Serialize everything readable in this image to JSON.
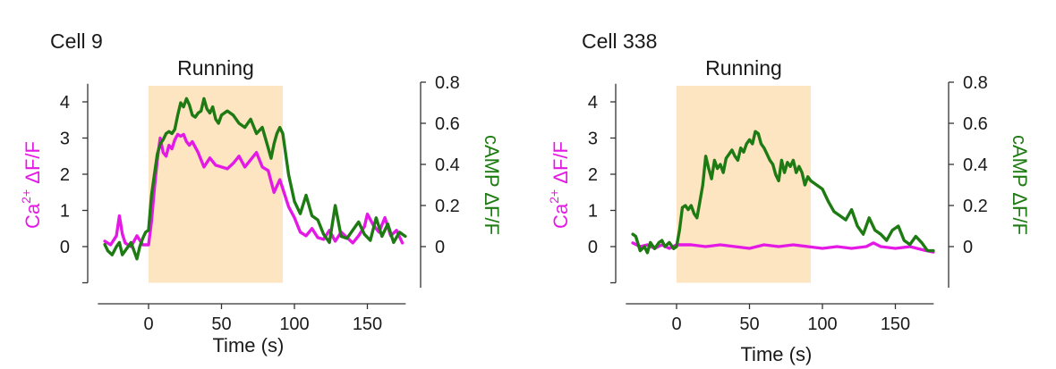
{
  "colors": {
    "calcium": "#e519e5",
    "camp": "#1e7a12",
    "band": "#fde5c2",
    "axis": "#333333"
  },
  "chart_data": [
    {
      "type": "line",
      "title": "Cell 9",
      "band": {
        "label": "Running",
        "x": [
          0,
          92
        ]
      },
      "xlabel": "Time (s)",
      "xlim": [
        -36,
        180
      ],
      "xticks": [
        0,
        50,
        100,
        150
      ],
      "left_axis": {
        "label_main": "Ca",
        "label_sup": "2+",
        "label_rest": " ΔF/F",
        "ylim": [
          -1,
          4.5
        ],
        "yticks": [
          0,
          1,
          2,
          3,
          4
        ],
        "minor_ticks": [
          -1
        ]
      },
      "right_axis": {
        "label": "cAMP ΔF/F",
        "ylim": [
          -0.2,
          0.8
        ],
        "yticks": [
          0,
          0.2,
          0.4,
          0.6,
          0.8
        ],
        "tick_labels": [
          "0",
          "0.2",
          "0.4",
          "0.6",
          "0.8"
        ]
      },
      "series": [
        {
          "axis": "left",
          "color_key": "calcium",
          "x": [
            -30,
            -26,
            -22,
            -20,
            -18,
            -16,
            -12,
            -8,
            -4,
            0,
            2,
            4,
            6,
            8,
            10,
            12,
            14,
            16,
            18,
            20,
            22,
            24,
            26,
            28,
            30,
            34,
            38,
            42,
            46,
            50,
            54,
            58,
            62,
            66,
            70,
            74,
            78,
            82,
            86,
            90,
            92,
            96,
            100,
            104,
            108,
            112,
            116,
            120,
            124,
            128,
            132,
            136,
            140,
            144,
            148,
            150,
            154,
            158,
            162,
            166,
            170,
            174
          ],
          "values": [
            0.15,
            0.05,
            0.3,
            0.85,
            0.35,
            0.1,
            0.0,
            0.3,
            0.05,
            0.05,
            0.7,
            1.6,
            2.4,
            3.0,
            2.6,
            2.5,
            2.8,
            2.7,
            2.95,
            3.1,
            3.05,
            3.1,
            2.9,
            2.8,
            2.9,
            2.6,
            2.2,
            2.45,
            2.25,
            2.2,
            2.15,
            2.3,
            2.5,
            2.2,
            2.4,
            2.6,
            2.2,
            2.1,
            1.5,
            1.85,
            1.6,
            1.1,
            0.8,
            0.4,
            0.3,
            0.5,
            0.25,
            0.2,
            0.45,
            0.15,
            0.4,
            0.25,
            0.1,
            0.3,
            0.55,
            0.9,
            0.6,
            0.4,
            0.8,
            0.3,
            0.45,
            0.1
          ]
        },
        {
          "axis": "right",
          "color_key": "camp",
          "x": [
            -30,
            -28,
            -25,
            -22,
            -20,
            -18,
            -16,
            -14,
            -12,
            -10,
            -8,
            -6,
            -4,
            -2,
            0,
            2,
            4,
            6,
            8,
            10,
            12,
            14,
            16,
            18,
            20,
            22,
            24,
            26,
            28,
            30,
            32,
            34,
            36,
            38,
            40,
            42,
            44,
            46,
            48,
            50,
            54,
            58,
            62,
            66,
            70,
            74,
            78,
            82,
            84,
            86,
            88,
            90,
            92,
            96,
            100,
            104,
            108,
            112,
            116,
            120,
            124,
            128,
            132,
            136,
            140,
            144,
            148,
            152,
            156,
            160,
            164,
            168,
            172,
            176
          ],
          "values": [
            0.01,
            -0.02,
            -0.04,
            0.0,
            0.02,
            -0.04,
            -0.02,
            0.0,
            0.02,
            -0.02,
            -0.06,
            0.0,
            0.04,
            0.07,
            0.08,
            0.25,
            0.35,
            0.45,
            0.5,
            0.52,
            0.55,
            0.56,
            0.55,
            0.57,
            0.64,
            0.7,
            0.68,
            0.72,
            0.69,
            0.64,
            0.63,
            0.65,
            0.66,
            0.72,
            0.67,
            0.65,
            0.68,
            0.62,
            0.6,
            0.64,
            0.66,
            0.64,
            0.6,
            0.58,
            0.62,
            0.55,
            0.58,
            0.48,
            0.43,
            0.5,
            0.55,
            0.58,
            0.55,
            0.35,
            0.22,
            0.16,
            0.25,
            0.15,
            0.13,
            0.06,
            0.02,
            0.2,
            0.05,
            0.04,
            0.08,
            0.12,
            0.06,
            0.03,
            0.14,
            0.05,
            0.11,
            0.02,
            0.07,
            0.05
          ]
        }
      ]
    },
    {
      "type": "line",
      "title": "Cell 338",
      "band": {
        "label": "Running",
        "x": [
          0,
          92
        ]
      },
      "xlabel": "Time (s)",
      "xlim": [
        -36,
        180
      ],
      "xticks": [
        0,
        50,
        100,
        150
      ],
      "left_axis": {
        "label_main": "Ca",
        "label_sup": "2+",
        "label_rest": " ΔF/F",
        "ylim": [
          -1,
          4.5
        ],
        "yticks": [
          0,
          1,
          2,
          3,
          4
        ],
        "minor_ticks": [
          -1
        ]
      },
      "right_axis": {
        "label": "cAMP ΔF/F",
        "ylim": [
          -0.2,
          0.8
        ],
        "yticks": [
          0,
          0.2,
          0.4,
          0.6,
          0.8
        ],
        "tick_labels": [
          "0",
          "0.2",
          "0.4",
          "0.6",
          "0.8"
        ]
      },
      "series": [
        {
          "axis": "left",
          "color_key": "calcium",
          "x": [
            -30,
            -25,
            -20,
            -15,
            -10,
            -5,
            0,
            10,
            20,
            30,
            40,
            50,
            60,
            70,
            80,
            90,
            100,
            110,
            120,
            130,
            135,
            140,
            150,
            160,
            170,
            176
          ],
          "values": [
            0.1,
            0.0,
            0.05,
            -0.05,
            0.05,
            -0.05,
            0.05,
            0.05,
            0.0,
            0.05,
            0.0,
            -0.05,
            0.05,
            0.0,
            0.05,
            0.0,
            -0.05,
            0.0,
            -0.05,
            0.0,
            0.1,
            0.0,
            -0.05,
            0.0,
            -0.1,
            -0.15
          ]
        },
        {
          "axis": "right",
          "color_key": "camp",
          "x": [
            -30,
            -28,
            -25,
            -22,
            -20,
            -18,
            -15,
            -12,
            -10,
            -8,
            -5,
            -2,
            0,
            2,
            4,
            6,
            8,
            10,
            12,
            14,
            16,
            18,
            20,
            22,
            24,
            26,
            28,
            30,
            32,
            34,
            36,
            38,
            40,
            42,
            44,
            46,
            48,
            50,
            52,
            54,
            56,
            58,
            60,
            62,
            64,
            66,
            68,
            70,
            72,
            74,
            76,
            78,
            80,
            82,
            84,
            86,
            88,
            90,
            92,
            96,
            100,
            104,
            108,
            112,
            116,
            120,
            124,
            128,
            132,
            136,
            140,
            144,
            148,
            152,
            156,
            160,
            164,
            168,
            172,
            176
          ],
          "values": [
            0.06,
            0.05,
            -0.02,
            0.0,
            -0.03,
            0.02,
            -0.01,
            0.02,
            0.03,
            0.0,
            0.02,
            -0.01,
            0.0,
            0.08,
            0.19,
            0.2,
            0.18,
            0.2,
            0.16,
            0.14,
            0.22,
            0.3,
            0.44,
            0.38,
            0.33,
            0.42,
            0.38,
            0.4,
            0.36,
            0.43,
            0.45,
            0.47,
            0.44,
            0.42,
            0.48,
            0.46,
            0.5,
            0.52,
            0.5,
            0.56,
            0.55,
            0.5,
            0.48,
            0.45,
            0.42,
            0.4,
            0.35,
            0.32,
            0.42,
            0.36,
            0.41,
            0.39,
            0.42,
            0.36,
            0.39,
            0.36,
            0.3,
            0.34,
            0.32,
            0.3,
            0.28,
            0.22,
            0.17,
            0.15,
            0.13,
            0.18,
            0.1,
            0.06,
            0.14,
            0.08,
            0.06,
            0.03,
            0.08,
            0.1,
            0.03,
            0.01,
            0.05,
            0.02,
            -0.02,
            -0.02
          ]
        }
      ]
    }
  ]
}
